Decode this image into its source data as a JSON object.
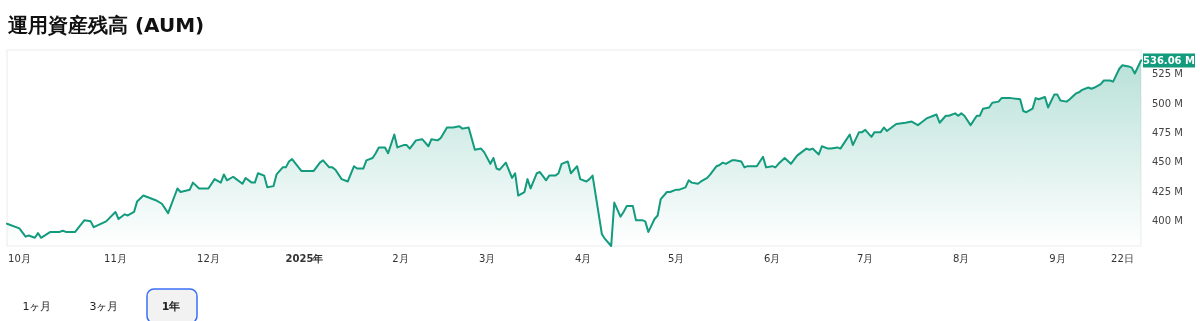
{
  "chart_data": {
    "type": "area",
    "title": "運用資産残高 (AUM)",
    "color": "#139b7e",
    "grid": false,
    "marker": "none",
    "line_style": "solid",
    "x": [
      "2024-09-27",
      "2024-10-01",
      "2024-10-03",
      "2024-10-04",
      "2024-10-06",
      "2024-10-07",
      "2024-10-08",
      "2024-10-11",
      "2024-10-14",
      "2024-10-15",
      "2024-10-16",
      "2024-10-19",
      "2024-10-22",
      "2024-10-24",
      "2024-10-25",
      "2024-10-29",
      "2024-11-01",
      "2024-11-02",
      "2024-11-04",
      "2024-11-05",
      "2024-11-07",
      "2024-11-08",
      "2024-11-10",
      "2024-11-14",
      "2024-11-16",
      "2024-11-18",
      "2024-11-21",
      "2024-11-22",
      "2024-11-25",
      "2024-11-26",
      "2024-11-28",
      "2024-12-01",
      "2024-12-03",
      "2024-12-05",
      "2024-12-06",
      "2024-12-07",
      "2024-12-09",
      "2024-12-10",
      "2024-12-12",
      "2024-12-13",
      "2024-12-15",
      "2024-12-16",
      "2024-12-17",
      "2024-12-19",
      "2024-12-20",
      "2024-12-22",
      "2024-12-23",
      "2024-12-25",
      "2024-12-26",
      "2024-12-27",
      "2024-12-28",
      "2024-12-31",
      "2025-01-04",
      "2025-01-06",
      "2025-01-07",
      "2025-01-09",
      "2025-01-10",
      "2025-01-11",
      "2025-01-13",
      "2025-01-15",
      "2025-01-17",
      "2025-01-18",
      "2025-01-20",
      "2025-01-21",
      "2025-01-23",
      "2025-01-24",
      "2025-01-25",
      "2025-01-27",
      "2025-01-28",
      "2025-01-30",
      "2025-01-31",
      "2025-02-02",
      "2025-02-03",
      "2025-02-04",
      "2025-02-06",
      "2025-02-08",
      "2025-02-10",
      "2025-02-11",
      "2025-02-13",
      "2025-02-14",
      "2025-02-16",
      "2025-02-18",
      "2025-02-20",
      "2025-02-21",
      "2025-02-23",
      "2025-02-25",
      "2025-02-27",
      "2025-02-28",
      "2025-03-02",
      "2025-03-03",
      "2025-03-04",
      "2025-03-05",
      "2025-03-07",
      "2025-03-09",
      "2025-03-10",
      "2025-03-11",
      "2025-03-13",
      "2025-03-14",
      "2025-03-15",
      "2025-03-17",
      "2025-03-18",
      "2025-03-20",
      "2025-03-21",
      "2025-03-23",
      "2025-03-24",
      "2025-03-25",
      "2025-03-27",
      "2025-03-28",
      "2025-03-30",
      "2025-03-31",
      "2025-04-02",
      "2025-04-03",
      "2025-04-04",
      "2025-04-07",
      "2025-04-08",
      "2025-04-10",
      "2025-04-11",
      "2025-04-13",
      "2025-04-14",
      "2025-04-15",
      "2025-04-17",
      "2025-04-18",
      "2025-04-20",
      "2025-04-21",
      "2025-04-22",
      "2025-04-24",
      "2025-04-25",
      "2025-04-26",
      "2025-04-28",
      "2025-04-29",
      "2025-05-01",
      "2025-05-02",
      "2025-05-04",
      "2025-05-05",
      "2025-05-06",
      "2025-05-08",
      "2025-05-09",
      "2025-05-11",
      "2025-05-12",
      "2025-05-14",
      "2025-05-15",
      "2025-05-16",
      "2025-05-17",
      "2025-05-19",
      "2025-05-20",
      "2025-05-22",
      "2025-05-23",
      "2025-05-24",
      "2025-05-27",
      "2025-05-29",
      "2025-05-30",
      "2025-06-01",
      "2025-06-02",
      "2025-06-03",
      "2025-06-05",
      "2025-06-07",
      "2025-06-09",
      "2025-06-12",
      "2025-06-13",
      "2025-06-14",
      "2025-06-16",
      "2025-06-17",
      "2025-06-19",
      "2025-06-20",
      "2025-06-22",
      "2025-06-23",
      "2025-06-24",
      "2025-06-26",
      "2025-06-27",
      "2025-06-29",
      "2025-06-30",
      "2025-07-01",
      "2025-07-03",
      "2025-07-04",
      "2025-07-06",
      "2025-07-07",
      "2025-07-08",
      "2025-07-11",
      "2025-07-14",
      "2025-07-16",
      "2025-07-18",
      "2025-07-19",
      "2025-07-21",
      "2025-07-23",
      "2025-07-24",
      "2025-07-25",
      "2025-07-27",
      "2025-07-28",
      "2025-07-30",
      "2025-07-31",
      "2025-08-01",
      "2025-08-02",
      "2025-08-04",
      "2025-08-06",
      "2025-08-07",
      "2025-08-08",
      "2025-08-10",
      "2025-08-11",
      "2025-08-13",
      "2025-08-14",
      "2025-08-17",
      "2025-08-20",
      "2025-08-21",
      "2025-08-22",
      "2025-08-24",
      "2025-08-25",
      "2025-08-26",
      "2025-08-28",
      "2025-08-29",
      "2025-08-31",
      "2025-09-01",
      "2025-09-02",
      "2025-09-04",
      "2025-09-05",
      "2025-09-07",
      "2025-09-08",
      "2025-09-09",
      "2025-09-11",
      "2025-09-12",
      "2025-09-13",
      "2025-09-15",
      "2025-09-16",
      "2025-09-18",
      "2025-09-19",
      "2025-09-21",
      "2025-09-22",
      "2025-09-24",
      "2025-09-25",
      "2025-09-26",
      "2025-09-28"
    ],
    "values": [
      397,
      393,
      386,
      387,
      385,
      389,
      385,
      390,
      390,
      391,
      390,
      390,
      400,
      399,
      394,
      399,
      407,
      401,
      405,
      404,
      407,
      416,
      421,
      417,
      414,
      406,
      427,
      424,
      426,
      432,
      427,
      427,
      435,
      432,
      439,
      434,
      437,
      435,
      431,
      436,
      432,
      432,
      440,
      438,
      428,
      429,
      439,
      445,
      445,
      450,
      452,
      442,
      442,
      449,
      451,
      445,
      445,
      443,
      435,
      433,
      446,
      444,
      444,
      451,
      453,
      457,
      462,
      462,
      457,
      473,
      462,
      464,
      464,
      461,
      468,
      469,
      463,
      469,
      468,
      470,
      479,
      479,
      480,
      478,
      479,
      460,
      461,
      458,
      448,
      453,
      444,
      443,
      449,
      436,
      440,
      421,
      424,
      435,
      427,
      440,
      441,
      434,
      438,
      438,
      440,
      448,
      450,
      440,
      446,
      435,
      433,
      435,
      438,
      388,
      384,
      378,
      415,
      403,
      407,
      412,
      412,
      400,
      400,
      399,
      390,
      401,
      404,
      418,
      424,
      424,
      426,
      426,
      428,
      434,
      432,
      431,
      433,
      436,
      439,
      446,
      447,
      449,
      448,
      451,
      451,
      450,
      445,
      446,
      446,
      454,
      445,
      446,
      445,
      448,
      453,
      448,
      455,
      461,
      460,
      461,
      456,
      463,
      461,
      461,
      462,
      461,
      465,
      473,
      464,
      475,
      475,
      477,
      471,
      475,
      475,
      479,
      476,
      482,
      483,
      484,
      481,
      483,
      487,
      489,
      490,
      483,
      489,
      489,
      491,
      489,
      491,
      489,
      481,
      489,
      489,
      495,
      496,
      500,
      501,
      504,
      504,
      503,
      493,
      492,
      495,
      504,
      503,
      505,
      496,
      507,
      507,
      502,
      501,
      503,
      508,
      509,
      511,
      513,
      512,
      513,
      516,
      519,
      519,
      518,
      529,
      532,
      531,
      530,
      525,
      536.06
    ],
    "xlim": [
      "2024-09-27",
      "2025-09-28"
    ],
    "ylim": [
      378,
      545
    ],
    "xticks": [
      {
        "value": "2024-10-01",
        "label": "10月"
      },
      {
        "value": "2024-11-01",
        "label": "11月"
      },
      {
        "value": "2024-12-01",
        "label": "12月"
      },
      {
        "value": "2025-01-01",
        "label": "2025年"
      },
      {
        "value": "2025-02-01",
        "label": "2月"
      },
      {
        "value": "2025-03-01",
        "label": "3月"
      },
      {
        "value": "2025-04-01",
        "label": "4月"
      },
      {
        "value": "2025-05-01",
        "label": "5月"
      },
      {
        "value": "2025-06-01",
        "label": "6月"
      },
      {
        "value": "2025-07-01",
        "label": "7月"
      },
      {
        "value": "2025-08-01",
        "label": "8月"
      },
      {
        "value": "2025-09-01",
        "label": "9月"
      },
      {
        "value": "2025-09-22",
        "label": "22日"
      }
    ],
    "yticks": [
      {
        "value": 400,
        "label": "400 M"
      },
      {
        "value": 425,
        "label": "425 M"
      },
      {
        "value": 450,
        "label": "450 M"
      },
      {
        "value": 475,
        "label": "475 M"
      },
      {
        "value": 500,
        "label": "500 M"
      },
      {
        "value": 525,
        "label": "525 M"
      }
    ],
    "annotations": [
      {
        "text": "536.06 M",
        "x": "2025-09-28",
        "y": 536.06
      },
      "1ヶ月",
      "3ヶ月",
      "1年"
    ]
  }
}
